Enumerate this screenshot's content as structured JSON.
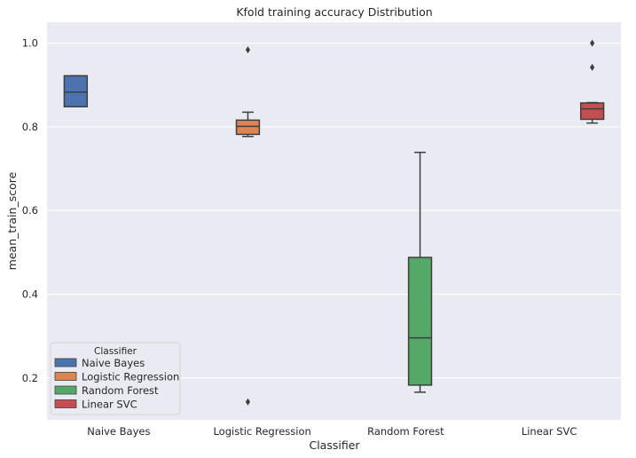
{
  "chart_data": {
    "type": "box",
    "title": "Kfold training accuracy Distribution",
    "xlabel": "Classifier",
    "ylabel": "mean_train_score",
    "ylim": [
      0.1,
      1.05
    ],
    "yticks": [
      0.2,
      0.4,
      0.6,
      0.8,
      1.0
    ],
    "ytick_labels": [
      "0.2",
      "0.4",
      "0.6",
      "0.8",
      "1.0"
    ],
    "categories": [
      "Naive Bayes",
      "Logistic Regression",
      "Random Forest",
      "Linear SVC"
    ],
    "grid": true,
    "legend": {
      "title": "Classifier",
      "position": "lower-left"
    },
    "series": [
      {
        "name": "Naive Bayes",
        "color": "#4c72b0",
        "whisker_low": 0.848,
        "q1": 0.848,
        "median": 0.883,
        "q3": 0.922,
        "whisker_high": 0.922,
        "outliers": []
      },
      {
        "name": "Logistic Regression",
        "color": "#dd8452",
        "whisker_low": 0.777,
        "q1": 0.782,
        "median": 0.801,
        "q3": 0.816,
        "whisker_high": 0.835,
        "outliers": [
          0.984,
          0.143
        ]
      },
      {
        "name": "Random Forest",
        "color": "#55a868",
        "whisker_low": 0.166,
        "q1": 0.183,
        "median": 0.296,
        "q3": 0.488,
        "whisker_high": 0.739,
        "outliers": []
      },
      {
        "name": "Linear SVC",
        "color": "#c44e52",
        "whisker_low": 0.809,
        "q1": 0.818,
        "median": 0.843,
        "q3": 0.857,
        "whisker_high": 0.858,
        "outliers": [
          1.0,
          0.942
        ]
      }
    ]
  }
}
